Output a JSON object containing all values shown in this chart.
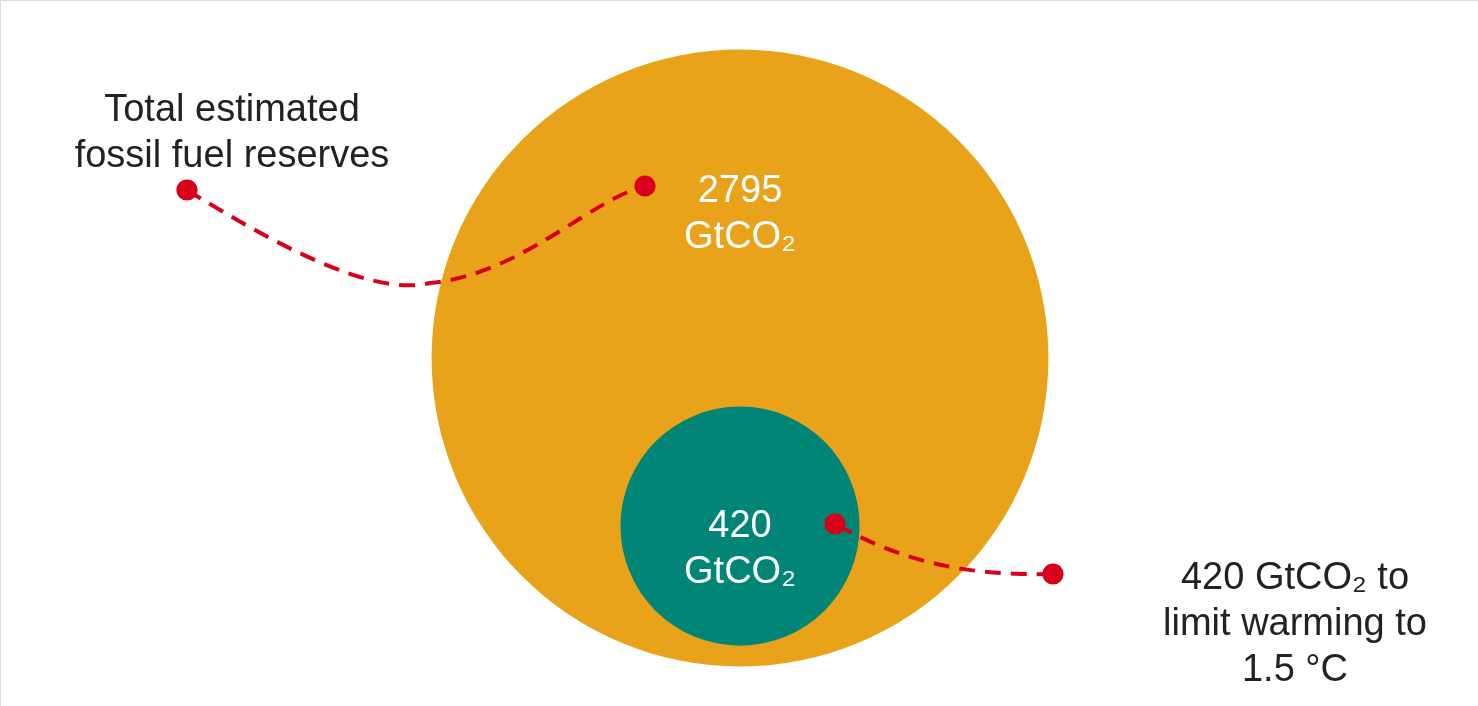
{
  "chart_data": {
    "type": "other",
    "values": [
      2795,
      420
    ],
    "value_labels": [
      "2795 GtCO₂",
      "420 GtCO₂"
    ],
    "colors": [
      "#e8a31a",
      "#008577"
    ],
    "annotations": [
      "Total estimated fossil fuel reserves",
      "420 GtCO₂ to limit warming to 1.5 °C"
    ]
  }
}
